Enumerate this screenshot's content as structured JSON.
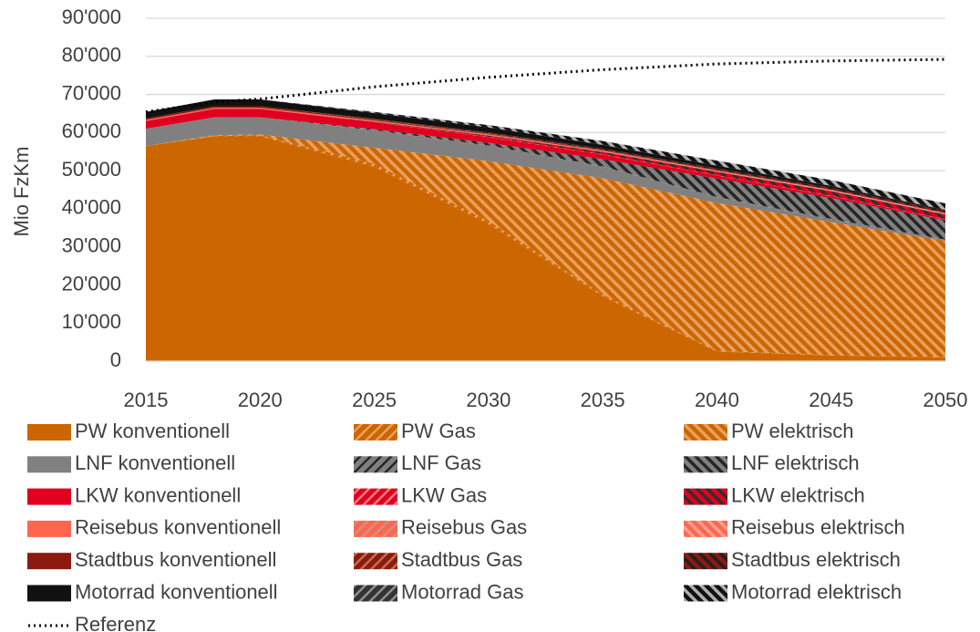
{
  "chart_data": {
    "type": "stacked_area",
    "y_label": "Mio FzKm",
    "x": [
      2015,
      2018,
      2020,
      2025,
      2030,
      2035,
      2040,
      2045,
      2050
    ],
    "xlim": [
      2015,
      2050
    ],
    "xticks": [
      2015,
      2020,
      2025,
      2030,
      2035,
      2040,
      2045,
      2050
    ],
    "ylim": [
      0,
      90000
    ],
    "yticks": [
      0,
      {
        "value": 10000,
        "label": "10'000"
      },
      {
        "value": 20000,
        "label": "20'000"
      },
      {
        "value": 30000,
        "label": "30'000"
      },
      {
        "value": 40000,
        "label": "40'000"
      },
      {
        "value": 50000,
        "label": "50'000"
      },
      {
        "value": 60000,
        "label": "60'000"
      },
      {
        "value": 70000,
        "label": "70'000"
      },
      {
        "value": 80000,
        "label": "80'000"
      },
      {
        "value": 90000,
        "label": "90'000"
      }
    ],
    "grid": true,
    "series": [
      {
        "name": "PW konventionell",
        "color": "#cc6600",
        "values": [
          56500,
          59000,
          59000,
          51000,
          36000,
          17000,
          2500,
          1500,
          1000
        ]
      },
      {
        "name": "PW Gas",
        "color": "#cc6600",
        "pattern": "fwd",
        "stripe": "#e8a060",
        "values": [
          0,
          100,
          300,
          800,
          800,
          500,
          200,
          100,
          100
        ]
      },
      {
        "name": "PW elektrisch",
        "color": "#cc6600",
        "pattern": "back",
        "stripe": "#e8a060",
        "values": [
          0,
          200,
          200,
          4200,
          15700,
          30500,
          38800,
          34900,
          30400
        ]
      },
      {
        "name": "LNF konventionell",
        "color": "#808080",
        "values": [
          4500,
          4700,
          4500,
          4500,
          4000,
          3000,
          1500,
          700,
          300
        ]
      },
      {
        "name": "LNF Gas",
        "color": "#808080",
        "pattern": "fwd",
        "stripe": "#262626",
        "values": [
          0,
          0,
          0,
          100,
          100,
          100,
          100,
          100,
          100
        ]
      },
      {
        "name": "LNF elektrisch",
        "color": "#808080",
        "pattern": "back",
        "stripe": "#262626",
        "values": [
          0,
          0,
          0,
          300,
          700,
          1900,
          4800,
          5500,
          5000
        ]
      },
      {
        "name": "LKW konventionell",
        "color": "#e00020",
        "values": [
          2000,
          2200,
          2200,
          1800,
          1500,
          1200,
          800,
          500,
          300
        ]
      },
      {
        "name": "LKW Gas",
        "color": "#e00020",
        "pattern": "fwd",
        "stripe": "#f08080",
        "values": [
          0,
          0,
          0,
          50,
          100,
          100,
          100,
          100,
          100
        ]
      },
      {
        "name": "LKW elektrisch",
        "color": "#e00020",
        "pattern": "back",
        "stripe": "#303030",
        "values": [
          0,
          0,
          0,
          100,
          300,
          600,
          900,
          1200,
          1200
        ]
      },
      {
        "name": "Reisebus konventionell",
        "color": "#ff6650",
        "values": [
          300,
          300,
          300,
          300,
          250,
          200,
          150,
          100,
          100
        ]
      },
      {
        "name": "Reisebus Gas",
        "color": "#ff6650",
        "pattern": "fwd",
        "stripe": "#d09080",
        "values": [
          0,
          0,
          0,
          0,
          20,
          30,
          30,
          30,
          30
        ]
      },
      {
        "name": "Reisebus elektrisch",
        "color": "#ff6650",
        "pattern": "back",
        "stripe": "#ffa090",
        "values": [
          0,
          0,
          0,
          0,
          30,
          60,
          100,
          150,
          170
        ]
      },
      {
        "name": "Stadtbus konventionell",
        "color": "#8b1a10",
        "values": [
          400,
          400,
          400,
          300,
          200,
          150,
          100,
          50,
          30
        ]
      },
      {
        "name": "Stadtbus Gas",
        "color": "#8b1a10",
        "pattern": "fwd",
        "stripe": "#c07050",
        "values": [
          0,
          0,
          0,
          50,
          80,
          80,
          70,
          60,
          50
        ]
      },
      {
        "name": "Stadtbus elektrisch",
        "color": "#8b1a10",
        "pattern": "back",
        "stripe": "#202020",
        "values": [
          0,
          0,
          0,
          100,
          250,
          350,
          450,
          500,
          500
        ]
      },
      {
        "name": "Motorrad konventionell",
        "color": "#111111",
        "values": [
          1700,
          1800,
          1800,
          1500,
          1300,
          1000,
          700,
          500,
          300
        ]
      },
      {
        "name": "Motorrad Gas",
        "color": "#333333",
        "pattern": "fwd",
        "stripe": "#909090",
        "values": [
          0,
          0,
          0,
          20,
          20,
          20,
          20,
          20,
          20
        ]
      },
      {
        "name": "Motorrad elektrisch",
        "color": "#111111",
        "pattern": "back",
        "stripe": "#b0b0b0",
        "values": [
          0,
          0,
          0,
          300,
          600,
          1000,
          1300,
          1500,
          1700
        ]
      }
    ],
    "reference": {
      "name": "Referenz",
      "color": "#000000",
      "values": [
        65400,
        68000,
        68800,
        72000,
        74500,
        76500,
        78000,
        78800,
        79200
      ]
    }
  }
}
